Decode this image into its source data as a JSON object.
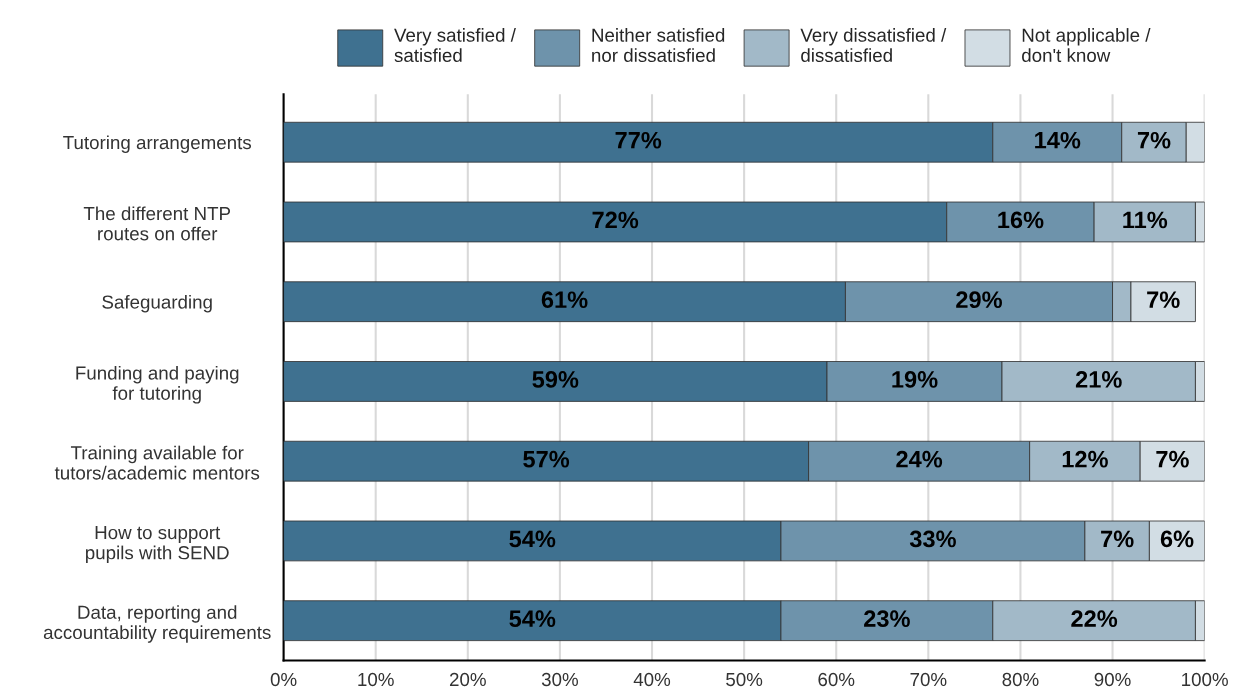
{
  "chart_data": {
    "type": "bar",
    "orientation": "horizontal",
    "stacked": true,
    "categories": [
      "Tutoring arrangements",
      "The different NTP\nroutes on offer",
      "Safeguarding",
      "Funding and paying\nfor tutoring",
      "Training available for\ntutors/academic mentors",
      "How to support\npupils with SEND",
      "Data, reporting and\naccountability requirements"
    ],
    "series": [
      {
        "name": "Very satisfied /\nsatisfied",
        "color": "#3f7190",
        "values": [
          77,
          72,
          61,
          59,
          57,
          54,
          54
        ],
        "value_labels": [
          "77%",
          "72%",
          "61%",
          "59%",
          "57%",
          "54%",
          "54%"
        ]
      },
      {
        "name": "Neither satisfied\nnor dissatisfied",
        "color": "#6e93ab",
        "values": [
          14,
          16,
          29,
          19,
          24,
          33,
          23
        ],
        "value_labels": [
          "14%",
          "16%",
          "29%",
          "19%",
          "24%",
          "33%",
          "23%"
        ]
      },
      {
        "name": "Very dissatisfied /\ndissatisfied",
        "color": "#a2b9c8",
        "values": [
          7,
          11,
          2,
          21,
          12,
          7,
          22
        ],
        "value_labels": [
          "7%",
          "11%",
          null,
          "21%",
          "12%",
          "7%",
          "22%"
        ]
      },
      {
        "name": "Not applicable /\ndon't know",
        "color": "#d2dde4",
        "values": [
          2,
          1,
          7,
          1,
          7,
          6,
          1
        ],
        "value_labels": [
          null,
          null,
          "7%",
          null,
          "7%",
          "6%",
          null
        ]
      }
    ],
    "xlim": [
      0,
      100
    ],
    "xticks": [
      {
        "value": 0,
        "label": "0%"
      },
      {
        "value": 10,
        "label": "10%"
      },
      {
        "value": 20,
        "label": "20%"
      },
      {
        "value": 30,
        "label": "30%"
      },
      {
        "value": 40,
        "label": "40%"
      },
      {
        "value": 50,
        "label": "50%"
      },
      {
        "value": 60,
        "label": "60%"
      },
      {
        "value": 70,
        "label": "70%"
      },
      {
        "value": 80,
        "label": "80%"
      },
      {
        "value": 90,
        "label": "90%"
      },
      {
        "value": 100,
        "label": "100%"
      }
    ],
    "grid": "x",
    "legend": "top"
  }
}
